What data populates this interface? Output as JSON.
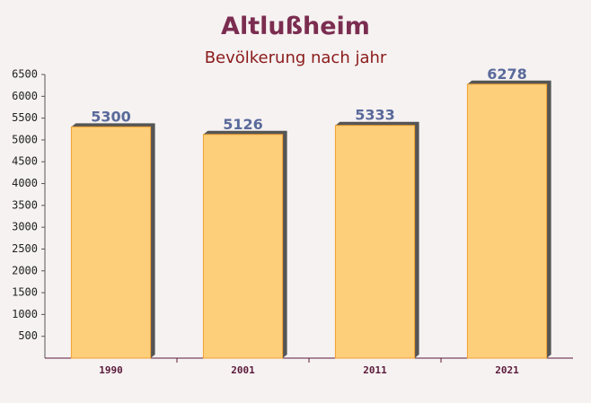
{
  "chart_data": {
    "type": "bar",
    "title": "Altlußheim",
    "subtitle": "Bevölkerung nach jahr",
    "categories": [
      "1990",
      "2001",
      "2011",
      "2021"
    ],
    "values": [
      5300,
      5126,
      5333,
      6278
    ],
    "color": "#ffc966",
    "ylim": [
      0,
      6500
    ],
    "yticks": [
      500,
      1000,
      1500,
      2000,
      2500,
      3000,
      3500,
      4000,
      4500,
      5000,
      5500,
      6000,
      6500
    ]
  }
}
